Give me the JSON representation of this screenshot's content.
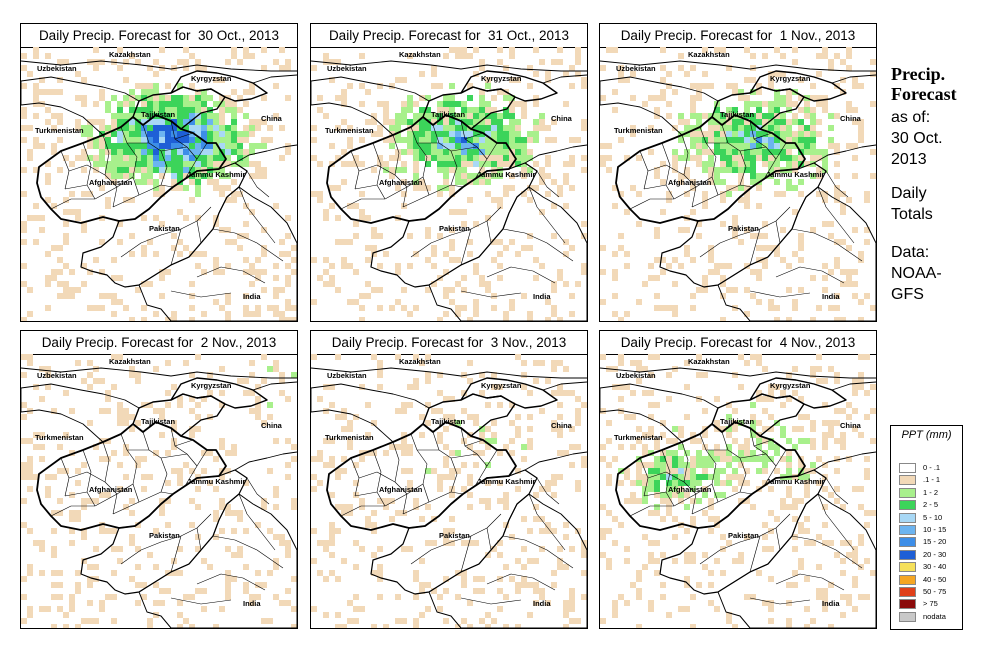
{
  "panels": [
    {
      "title": "Daily Precip. Forecast for  30 Oct., 2013",
      "intensity": 1.0
    },
    {
      "title": "Daily Precip. Forecast for  31 Oct., 2013",
      "intensity": 0.7
    },
    {
      "title": "Daily Precip. Forecast for  1 Nov., 2013",
      "intensity": 0.65
    },
    {
      "title": "Daily Precip. Forecast for  2 Nov., 2013",
      "intensity": 0.12
    },
    {
      "title": "Daily Precip. Forecast for  3 Nov., 2013",
      "intensity": 0.08
    },
    {
      "title": "Daily Precip. Forecast for  4 Nov., 2013",
      "intensity": 0.55
    }
  ],
  "map_labels": {
    "uzbekistan": "Uzbekistan",
    "kazakhstan": "Kazakhstan",
    "kyrgyzstan": "Kyrgyzstan",
    "tajikistan": "Tajikistan",
    "turkmenistan": "Turkmenistan",
    "china": "China",
    "afghanistan": "Afghanistan",
    "jammu_kashmir": "Jammu Kashmir",
    "pakistan": "Pakistan",
    "india": "India"
  },
  "sidebar": {
    "title_line1": "Precip.",
    "title_line2": "Forecast",
    "asof_line1": "as of:",
    "asof_line2": "30 Oct.",
    "asof_line3": "2013",
    "totals_line1": "Daily",
    "totals_line2": "Totals",
    "data_line1": "Data:",
    "data_line2": "NOAA-",
    "data_line3": "GFS"
  },
  "legend": {
    "title": "PPT (mm)",
    "items": [
      {
        "label": "0 - .1",
        "color": "#ffffff"
      },
      {
        "label": ".1 - 1",
        "color": "#f2d9b8"
      },
      {
        "label": "1 - 2",
        "color": "#a8f08c"
      },
      {
        "label": "2 - 5",
        "color": "#3cd45a"
      },
      {
        "label": "5 - 10",
        "color": "#a8d8f5"
      },
      {
        "label": "10 - 15",
        "color": "#6cb4f0"
      },
      {
        "label": "15 - 20",
        "color": "#3d8ee8"
      },
      {
        "label": "20 - 30",
        "color": "#1e5fd6"
      },
      {
        "label": "30 - 40",
        "color": "#f5e05a"
      },
      {
        "label": "40 - 50",
        "color": "#f5a623"
      },
      {
        "label": "50 - 75",
        "color": "#e0401a"
      },
      {
        "label": "> 75",
        "color": "#8b0a0a"
      },
      {
        "label": "nodata",
        "color": "#c8c8c8"
      }
    ]
  }
}
